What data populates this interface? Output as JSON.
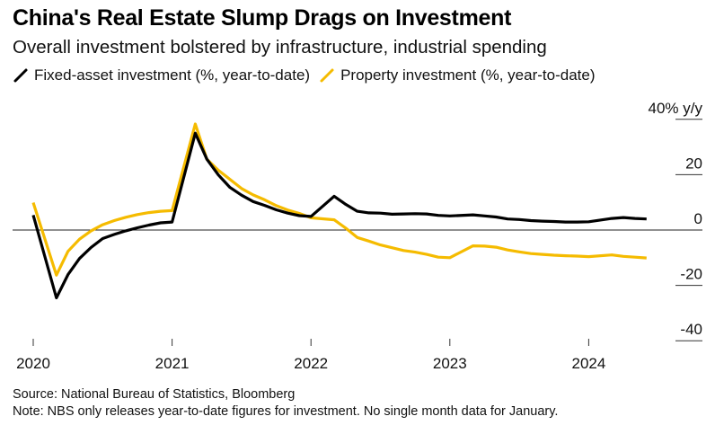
{
  "header": {
    "title": "China's Real Estate Slump Drags on Investment",
    "subtitle": "Overall investment bolstered by infrastructure, industrial spending"
  },
  "footer": {
    "source": "Source: National Bureau of Statistics, Bloomberg",
    "note": "Note: NBS only releases year-to-date figures for investment. No single month data for January."
  },
  "chart_data": {
    "type": "line",
    "title": "China's Real Estate Slump Drags on Investment",
    "subtitle": "Overall investment bolstered by infrastructure, industrial spending",
    "xlabel": "",
    "ylabel": "% y/y",
    "y_unit_label": "40% y/y",
    "ylim": [
      -40,
      40
    ],
    "yticks": [
      40,
      20,
      0,
      -20,
      -40
    ],
    "ytick_labels": [
      "40% y/y",
      "20",
      "0",
      "-20",
      "-40"
    ],
    "xticks": [
      "2020",
      "2021",
      "2022",
      "2023",
      "2024"
    ],
    "zero_line": true,
    "grid": false,
    "legend_position": "top-left",
    "x": [
      "2019-12",
      "2020-02",
      "2020-03",
      "2020-04",
      "2020-05",
      "2020-06",
      "2020-07",
      "2020-08",
      "2020-09",
      "2020-10",
      "2020-11",
      "2020-12",
      "2021-02",
      "2021-03",
      "2021-04",
      "2021-05",
      "2021-06",
      "2021-07",
      "2021-08",
      "2021-09",
      "2021-10",
      "2021-11",
      "2021-12",
      "2022-02",
      "2022-03",
      "2022-04",
      "2022-05",
      "2022-06",
      "2022-07",
      "2022-08",
      "2022-09",
      "2022-10",
      "2022-11",
      "2022-12",
      "2023-02",
      "2023-03",
      "2023-04",
      "2023-05",
      "2023-06",
      "2023-07",
      "2023-08",
      "2023-09",
      "2023-10",
      "2023-11",
      "2023-12",
      "2024-02",
      "2024-03",
      "2024-04",
      "2024-05"
    ],
    "series": [
      {
        "name": "Fixed-asset investment (%, year-to-date)",
        "color": "#000000",
        "values": [
          5.4,
          -24.5,
          -16.1,
          -10.3,
          -6.3,
          -3.1,
          -1.6,
          -0.3,
          0.8,
          1.8,
          2.6,
          2.9,
          35.0,
          25.6,
          19.9,
          15.4,
          12.6,
          10.3,
          8.9,
          7.3,
          6.1,
          5.2,
          4.9,
          12.2,
          9.3,
          6.8,
          6.2,
          6.1,
          5.7,
          5.8,
          5.9,
          5.8,
          5.3,
          5.1,
          5.5,
          5.1,
          4.7,
          4.0,
          3.8,
          3.4,
          3.2,
          3.1,
          2.9,
          2.9,
          3.0,
          4.2,
          4.5,
          4.2,
          4.0
        ]
      },
      {
        "name": "Property investment (%, year-to-date)",
        "color": "#F5BB00",
        "values": [
          9.9,
          -16.3,
          -7.7,
          -3.3,
          -0.3,
          1.9,
          3.4,
          4.6,
          5.6,
          6.3,
          6.8,
          7.0,
          38.3,
          25.6,
          21.6,
          18.3,
          15.0,
          12.7,
          10.9,
          8.8,
          7.2,
          6.0,
          4.4,
          3.7,
          0.7,
          -2.7,
          -4.0,
          -5.4,
          -6.4,
          -7.4,
          -8.0,
          -8.8,
          -9.8,
          -10.0,
          -5.7,
          -5.8,
          -6.2,
          -7.2,
          -7.9,
          -8.5,
          -8.8,
          -9.1,
          -9.3,
          -9.4,
          -9.6,
          -9.0,
          -9.5,
          -9.8,
          -10.1
        ]
      }
    ]
  }
}
